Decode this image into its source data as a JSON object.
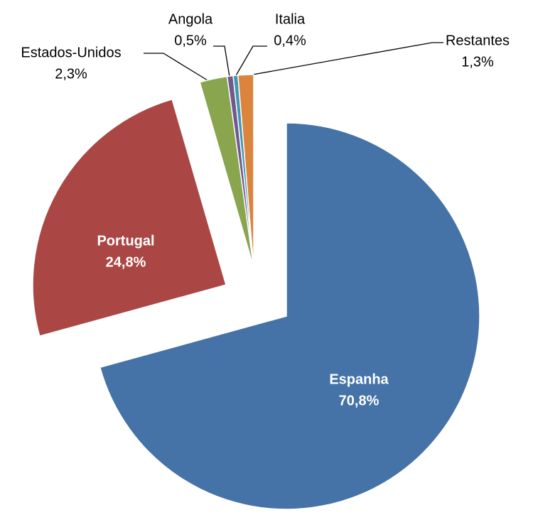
{
  "chart_data": {
    "type": "pie",
    "categories": [
      "Espanha",
      "Portugal",
      "Estados-Unidos",
      "Angola",
      "Italia",
      "Restantes"
    ],
    "values": [
      70.8,
      24.8,
      2.3,
      0.5,
      0.4,
      1.3
    ],
    "value_labels": [
      "70,8%",
      "24,8%",
      "2,3%",
      "0,5%",
      "0,4%",
      "1,3%"
    ],
    "colors": [
      "#4572a7",
      "#aa4643",
      "#89a54e",
      "#71588f",
      "#4198af",
      "#db843d"
    ]
  }
}
